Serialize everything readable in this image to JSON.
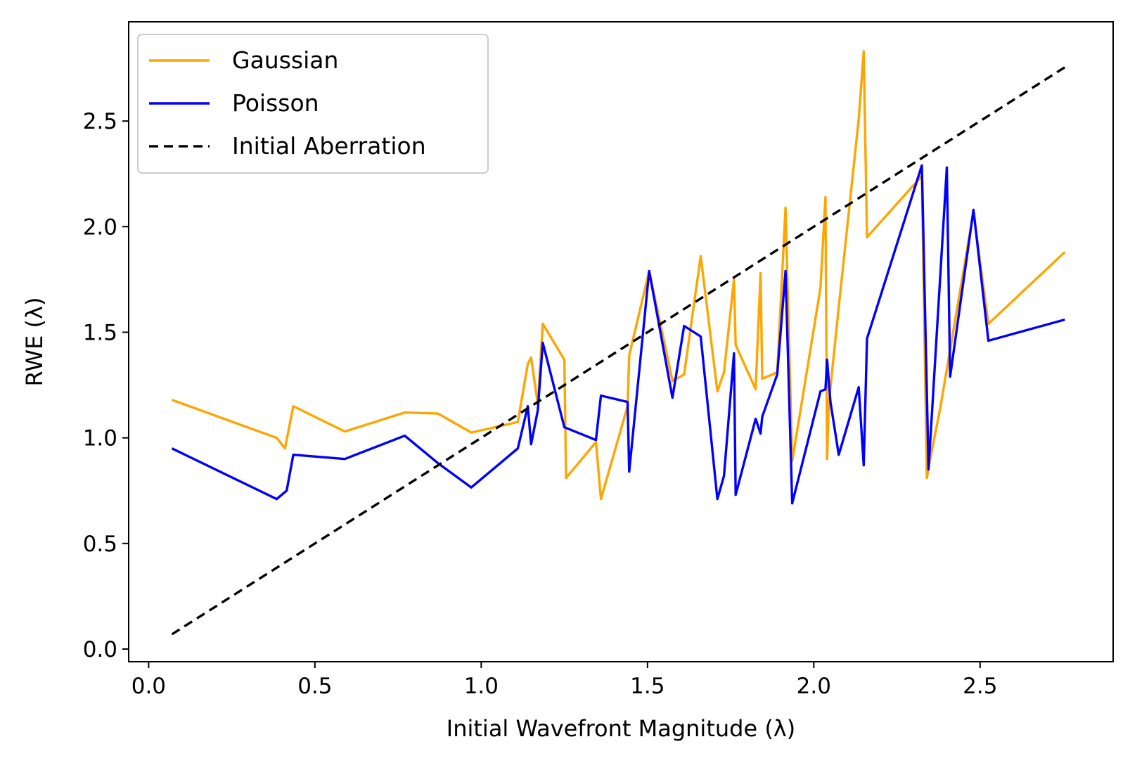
{
  "chart_data": {
    "type": "line",
    "title": "",
    "xlabel": "Initial Wavefront Magnitude (λ)",
    "ylabel": "RWE (λ)",
    "xlim": [
      -0.06,
      2.9
    ],
    "ylim": [
      -0.06,
      2.97
    ],
    "xticks": [
      0.0,
      0.5,
      1.0,
      1.5,
      2.0,
      2.5
    ],
    "xtick_labels": [
      "0.0",
      "0.5",
      "1.0",
      "1.5",
      "2.0",
      "2.5"
    ],
    "yticks": [
      0.0,
      0.5,
      1.0,
      1.5,
      2.0,
      2.5
    ],
    "ytick_labels": [
      "0.0",
      "0.5",
      "1.0",
      "1.5",
      "2.0",
      "2.5"
    ],
    "grid": false,
    "legend_position": "upper-left",
    "series": [
      {
        "name": "Gaussian",
        "color": "#ffa500",
        "style": "solid",
        "x": [
          0.07,
          0.385,
          0.41,
          0.435,
          0.59,
          0.77,
          0.87,
          0.97,
          1.11,
          1.14,
          1.15,
          1.17,
          1.185,
          1.25,
          1.255,
          1.345,
          1.36,
          1.44,
          1.445,
          1.505,
          1.575,
          1.61,
          1.66,
          1.71,
          1.73,
          1.76,
          1.765,
          1.825,
          1.84,
          1.845,
          1.89,
          1.915,
          1.935,
          2.02,
          2.035,
          2.04,
          2.045,
          2.075,
          2.135,
          2.15,
          2.16,
          2.325,
          2.34,
          2.345,
          2.38,
          2.48,
          2.525,
          2.755
        ],
        "y": [
          1.18,
          1.0,
          0.95,
          1.15,
          1.03,
          1.12,
          1.115,
          1.025,
          1.075,
          1.35,
          1.38,
          1.16,
          1.54,
          1.37,
          0.81,
          0.98,
          0.71,
          1.15,
          1.39,
          1.79,
          1.27,
          1.3,
          1.86,
          1.22,
          1.31,
          1.75,
          1.44,
          1.23,
          1.78,
          1.28,
          1.31,
          2.09,
          0.89,
          1.71,
          2.14,
          0.9,
          1.16,
          1.62,
          2.51,
          2.83,
          1.95,
          2.24,
          0.81,
          0.86,
          1.14,
          2.07,
          1.54,
          1.88
        ]
      },
      {
        "name": "Poisson",
        "color": "#0000ff",
        "style": "solid",
        "x": [
          0.07,
          0.385,
          0.415,
          0.435,
          0.59,
          0.77,
          0.87,
          0.97,
          1.11,
          1.14,
          1.15,
          1.17,
          1.185,
          1.25,
          1.345,
          1.36,
          1.44,
          1.445,
          1.505,
          1.575,
          1.61,
          1.66,
          1.71,
          1.73,
          1.76,
          1.765,
          1.825,
          1.84,
          1.845,
          1.89,
          1.915,
          1.935,
          2.02,
          2.035,
          2.04,
          2.05,
          2.075,
          2.135,
          2.15,
          2.16,
          2.325,
          2.345,
          2.4,
          2.41,
          2.48,
          2.525,
          2.755
        ],
        "y": [
          0.95,
          0.71,
          0.75,
          0.92,
          0.9,
          1.01,
          0.88,
          0.765,
          0.95,
          1.15,
          0.97,
          1.13,
          1.45,
          1.05,
          0.99,
          1.2,
          1.17,
          0.84,
          1.79,
          1.19,
          1.53,
          1.48,
          0.71,
          0.82,
          1.4,
          0.73,
          1.09,
          1.02,
          1.1,
          1.3,
          1.79,
          0.69,
          1.22,
          1.23,
          1.37,
          1.17,
          0.92,
          1.24,
          0.87,
          1.47,
          2.29,
          0.85,
          2.28,
          1.29,
          2.08,
          1.46,
          1.56
        ]
      },
      {
        "name": "Initial Aberration",
        "color": "#000000",
        "style": "dashed",
        "x": [
          0.07,
          2.755
        ],
        "y": [
          0.07,
          2.755
        ]
      }
    ]
  }
}
